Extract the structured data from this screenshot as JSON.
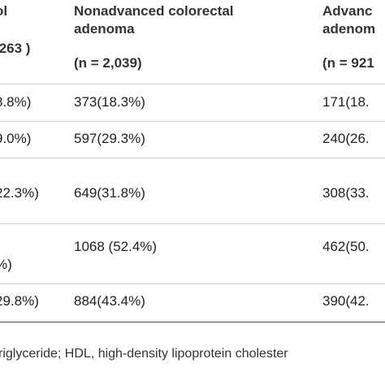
{
  "header": {
    "col1": {
      "line1": "ol",
      "n": ",263 )"
    },
    "col2": {
      "line1": "Nonadvanced colorectal",
      "line2": "adenoma",
      "n": "(n = 2,039)"
    },
    "col3": {
      "line1": "Advanc",
      "line2": "adenom",
      "n": "(n = 921"
    }
  },
  "rows": [
    {
      "c1": " 8.8%)",
      "c2": "373(18.3%)",
      "c3": "171(18."
    },
    {
      "c1": " 9.0%)",
      "c2": "597(29.3%)",
      "c3": "240(26."
    },
    {
      "c1": "22.3%)",
      "c2": "649(31.8%)",
      "c3": "308(33."
    },
    {
      "c1": "%)",
      "c2": "1068 (52.4%)",
      "c3": "462(50."
    },
    {
      "c1": "29.8%)",
      "c2": "884(43.4%)",
      "c3": "390(42."
    }
  ],
  "footnote": "riglyceride; HDL, high-density lipoprotein cholester"
}
